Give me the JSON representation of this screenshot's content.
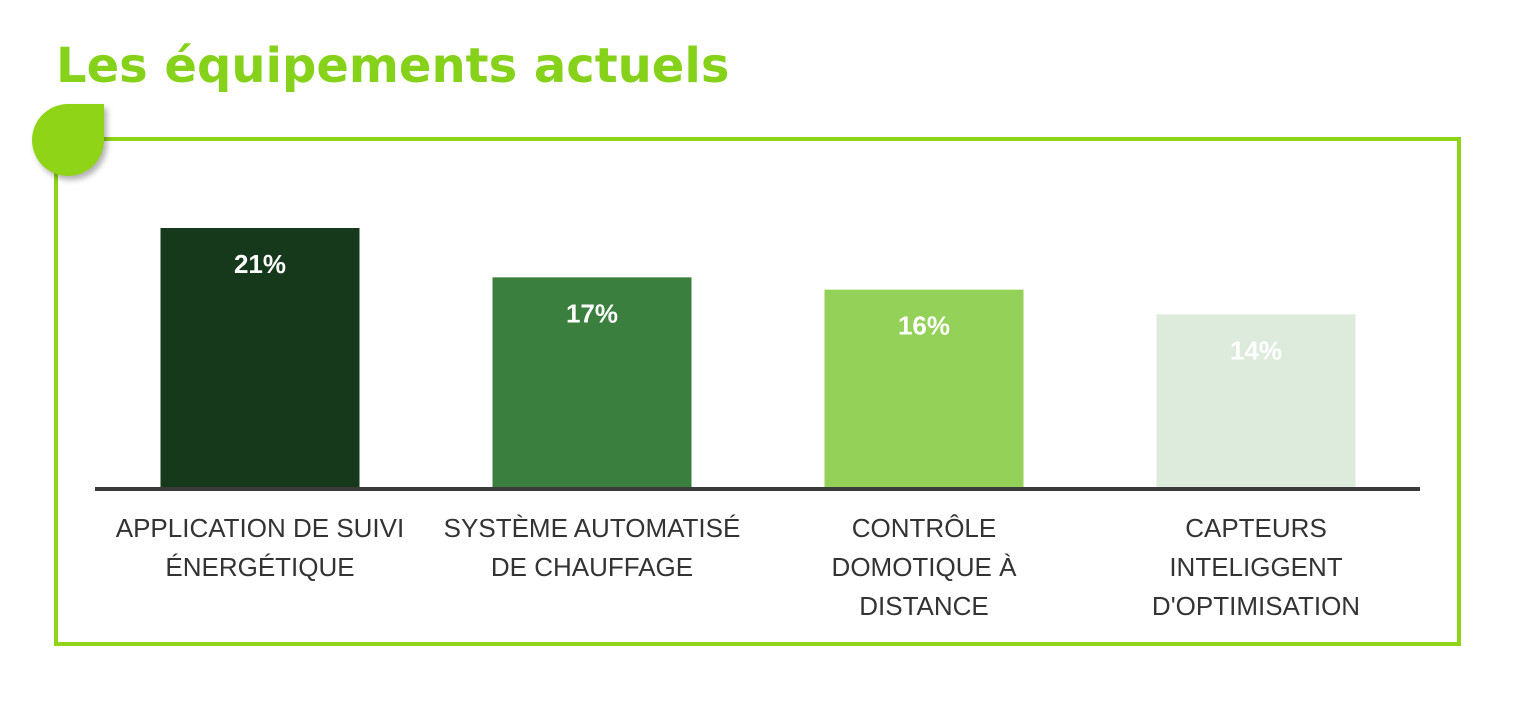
{
  "chart_data": {
    "type": "bar",
    "title": "Les équipements actuels",
    "categories": [
      [
        "APPLICATION DE SUIVI",
        "ÉNERGÉTIQUE"
      ],
      [
        "SYSTÈME AUTOMATISÉ",
        "DE CHAUFFAGE"
      ],
      [
        "CONTRÔLE",
        "DOMOTIQUE À",
        "DISTANCE"
      ],
      [
        "CAPTEURS",
        "INTELIGGENT",
        "D'OPTIMISATION"
      ]
    ],
    "values": [
      21,
      17,
      16,
      14
    ],
    "value_labels": [
      "21%",
      "17%",
      "16%",
      "14%"
    ],
    "colors": [
      "#16391b",
      "#3a7f3d",
      "#94d158",
      "#dcebdc"
    ]
  }
}
